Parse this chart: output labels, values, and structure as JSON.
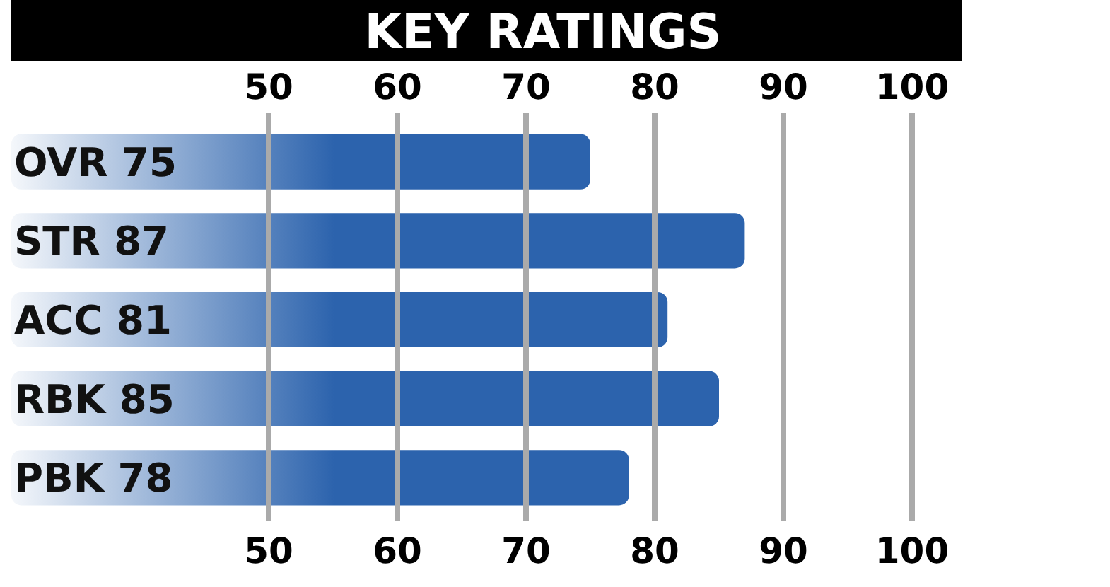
{
  "chart_data": {
    "type": "bar",
    "orientation": "horizontal",
    "title": "KEY RATINGS",
    "categories": [
      "OVR 75",
      "STR 87",
      "ACC 81",
      "RBK 85",
      "PBK 78"
    ],
    "values": [
      75,
      87,
      81,
      85,
      78
    ],
    "color": "#2c63ad",
    "xlim": [
      30,
      100
    ],
    "xticks": [
      50,
      60,
      70,
      80,
      90,
      100
    ],
    "x2lim": [
      30,
      100
    ],
    "x2ticks": [
      50,
      60,
      70,
      80,
      90,
      100
    ],
    "grid": "x",
    "tick_labels": "x"
  }
}
